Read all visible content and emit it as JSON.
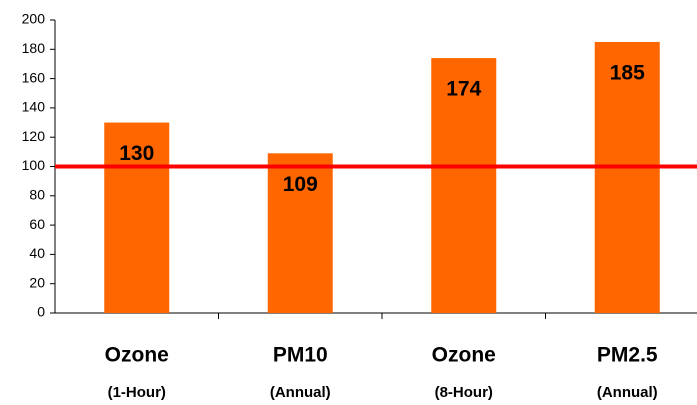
{
  "chart_data": {
    "type": "bar",
    "categories": [
      "Ozone",
      "PM10",
      "Ozone",
      "PM2.5"
    ],
    "category_notes": [
      "(1-Hour)",
      "(Annual)",
      "(8-Hour)",
      "(Annual)"
    ],
    "values": [
      130,
      109,
      174,
      185
    ],
    "color": "#ff6600",
    "ylim": [
      0,
      200
    ],
    "yticks": [
      0,
      20,
      40,
      60,
      80,
      100,
      120,
      140,
      160,
      180,
      200
    ],
    "grid": false,
    "reference_line": {
      "value": 100,
      "color": "#ff0000"
    }
  }
}
